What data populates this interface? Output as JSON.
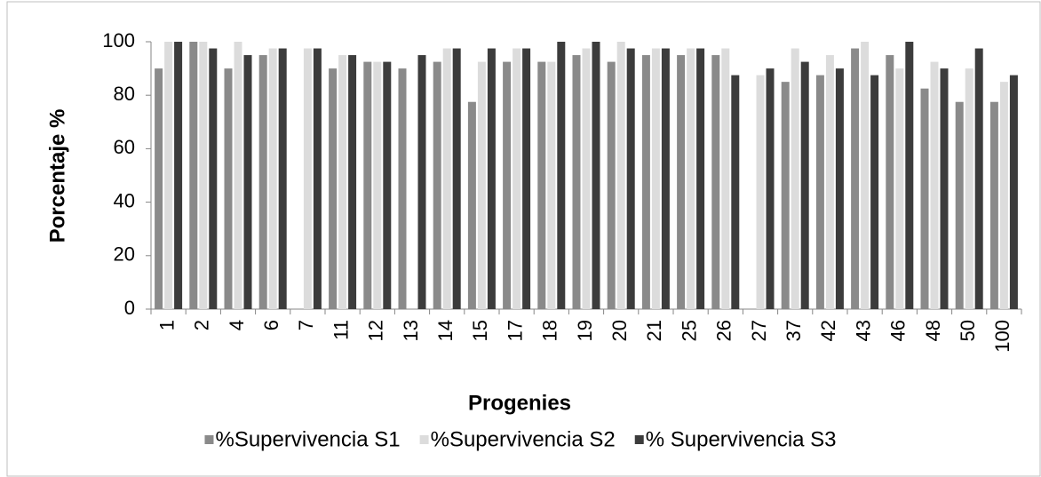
{
  "chart_data": {
    "type": "bar",
    "xlabel": "Progenies",
    "ylabel": "Porcentaje %",
    "categories": [
      "1",
      "2",
      "4",
      "6",
      "7",
      "11",
      "12",
      "13",
      "14",
      "15",
      "17",
      "18",
      "19",
      "20",
      "21",
      "25",
      "26",
      "27",
      "37",
      "42",
      "43",
      "46",
      "48",
      "50",
      "100"
    ],
    "series": [
      {
        "name": "%Supervivencia S1",
        "color": "#8a8a8a",
        "values": [
          90,
          100,
          90,
          95,
          0,
          90,
          92.5,
          90,
          92.5,
          77.5,
          92.5,
          92.5,
          95,
          92.5,
          95,
          95,
          95,
          0,
          85,
          87.5,
          97.5,
          95,
          82.5,
          77.5,
          77.5
        ]
      },
      {
        "name": "%Supervivencia S2",
        "color": "#dcdcdc",
        "values": [
          100,
          100,
          100,
          97.5,
          97.5,
          95,
          92.5,
          0,
          97.5,
          92.5,
          97.5,
          92.5,
          97.5,
          100,
          97.5,
          97.5,
          97.5,
          87.5,
          97.5,
          95,
          100,
          90,
          92.5,
          90,
          85
        ]
      },
      {
        "name": "% Supervivencia S3",
        "color": "#3c3c3c",
        "values": [
          100,
          97.5,
          95,
          97.5,
          97.5,
          95,
          92.5,
          95,
          97.5,
          97.5,
          97.5,
          100,
          100,
          97.5,
          97.5,
          97.5,
          87.5,
          90,
          92.5,
          90,
          87.5,
          100,
          90,
          97.5,
          87.5
        ]
      }
    ],
    "ylim": [
      0,
      100
    ],
    "yticks": [
      0,
      20,
      40,
      60,
      80,
      100
    ],
    "grid": false,
    "legend": "bottom"
  }
}
